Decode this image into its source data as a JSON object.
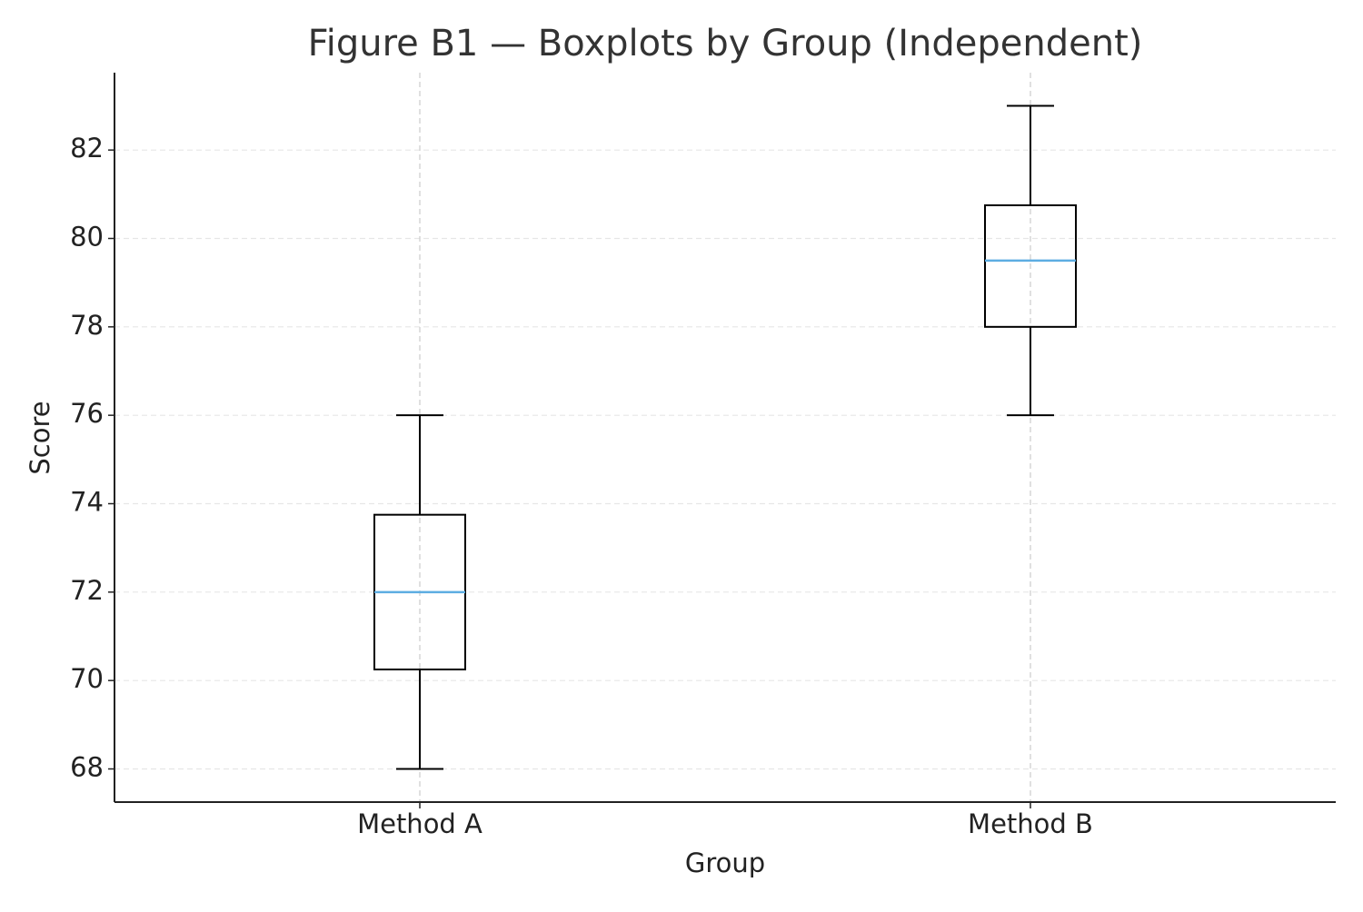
{
  "chart_data": {
    "type": "box",
    "title": "Figure B1 — Boxplots by Group (Independent)",
    "x_label": "Group",
    "y_label": "Score",
    "categories": [
      "Method A",
      "Method B"
    ],
    "boxes": [
      {
        "whislo": 68,
        "q1": 70.25,
        "med": 72,
        "q3": 73.75,
        "whishi": 76
      },
      {
        "whislo": 76,
        "q1": 78,
        "med": 79.5,
        "q3": 80.75,
        "whishi": 83
      }
    ],
    "box_color": "#000000",
    "median_color": "#5dade2",
    "ylim": [
      67.25,
      83.75
    ],
    "yticks": [
      68,
      70,
      72,
      74,
      76,
      78,
      80,
      82
    ],
    "grid": true
  }
}
